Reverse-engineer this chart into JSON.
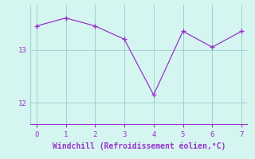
{
  "x": [
    0,
    1,
    2,
    3,
    4,
    5,
    6,
    7
  ],
  "y": [
    13.45,
    13.6,
    13.45,
    13.2,
    12.15,
    13.35,
    13.05,
    13.35
  ],
  "line_color": "#9933cc",
  "marker": "+",
  "markersize": 4,
  "linewidth": 0.9,
  "xlabel": "Windchill (Refroidissement éolien,°C)",
  "xlabel_fontsize": 7,
  "background_color": "#d4f5f0",
  "grid_color": "#99cccc",
  "tick_color": "#9933cc",
  "label_color": "#9933cc",
  "spine_color": "#9933cc",
  "xlim": [
    -0.2,
    7.2
  ],
  "ylim": [
    11.6,
    13.85
  ],
  "yticks": [
    12,
    13
  ],
  "xticks": [
    0,
    1,
    2,
    3,
    4,
    5,
    6,
    7
  ]
}
